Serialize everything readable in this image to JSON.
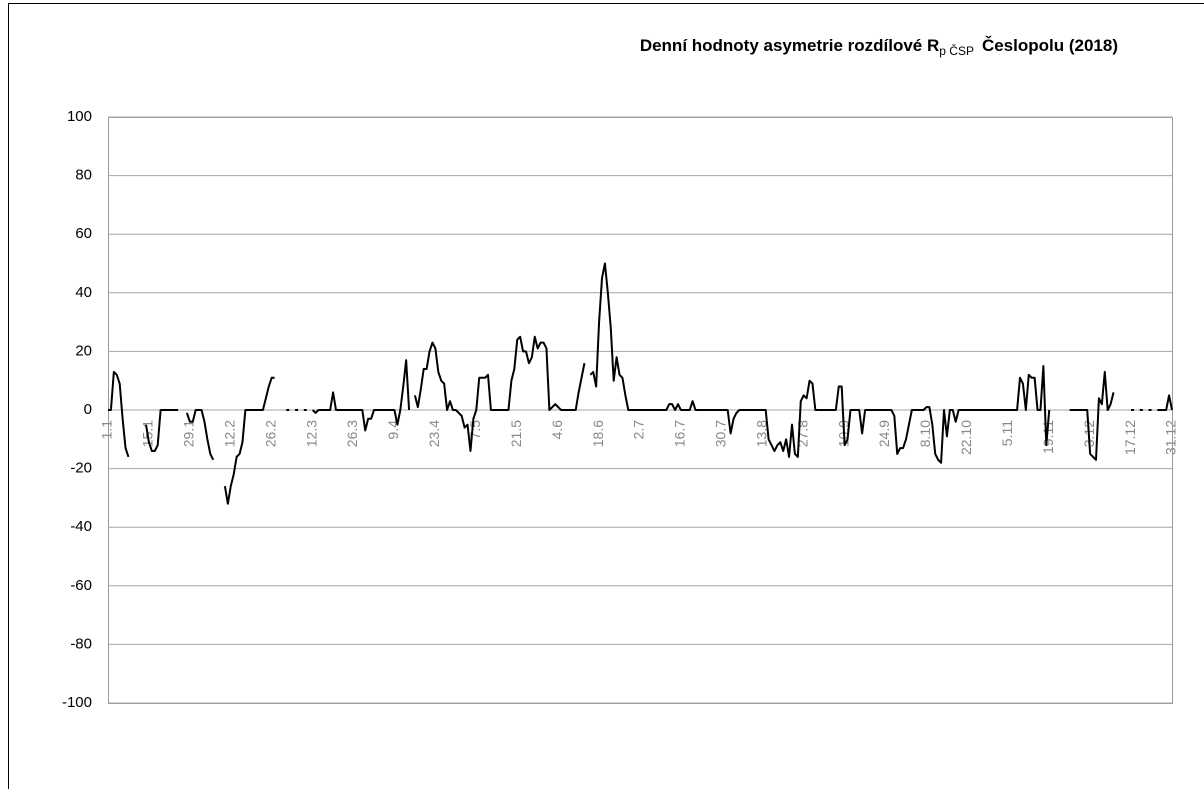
{
  "chart_data": {
    "type": "line",
    "title": "Denní hodnoty asymetrie rozdílové  R",
    "title_subscript": "p ČSP",
    "title_end": "Česlopolu (2018)",
    "color": "#000000",
    "grid": true,
    "ylim": [
      -100,
      100
    ],
    "yticks": [
      -100,
      -80,
      -60,
      -40,
      -20,
      0,
      20,
      40,
      60,
      80,
      100
    ],
    "categories": [
      "1.1",
      null,
      null,
      null,
      null,
      null,
      null,
      null,
      null,
      null,
      null,
      null,
      null,
      null,
      "15.1",
      null,
      null,
      null,
      null,
      null,
      null,
      null,
      null,
      null,
      null,
      null,
      null,
      null,
      "29.1",
      null,
      null,
      null,
      null,
      null,
      null,
      null,
      null,
      null,
      null,
      null,
      null,
      null,
      "12.2",
      null,
      null,
      null,
      null,
      null,
      null,
      null,
      null,
      null,
      null,
      null,
      null,
      null,
      "26.2",
      null,
      null,
      null,
      null,
      null,
      null,
      null,
      null,
      null,
      null,
      null,
      null,
      null,
      "12.3",
      null,
      null,
      null,
      null,
      null,
      null,
      null,
      null,
      null,
      null,
      null,
      null,
      null,
      "26.3",
      null,
      null,
      null,
      null,
      null,
      null,
      null,
      null,
      null,
      null,
      null,
      null,
      null,
      "9.4",
      null,
      null,
      null,
      null,
      null,
      null,
      null,
      null,
      null,
      null,
      null,
      null,
      null,
      "23.4",
      null,
      null,
      null,
      null,
      null,
      null,
      null,
      null,
      null,
      null,
      null,
      null,
      null,
      "7.5",
      null,
      null,
      null,
      null,
      null,
      null,
      null,
      null,
      null,
      null,
      null,
      null,
      null,
      "21.5",
      null,
      null,
      null,
      null,
      null,
      null,
      null,
      null,
      null,
      null,
      null,
      null,
      null,
      "4.6",
      null,
      null,
      null,
      null,
      null,
      null,
      null,
      null,
      null,
      null,
      null,
      null,
      null,
      "18.6",
      null,
      null,
      null,
      null,
      null,
      null,
      null,
      null,
      null,
      null,
      null,
      null,
      null,
      "2.7",
      null,
      null,
      null,
      null,
      null,
      null,
      null,
      null,
      null,
      null,
      null,
      null,
      null,
      "16.7",
      null,
      null,
      null,
      null,
      null,
      null,
      null,
      null,
      null,
      null,
      null,
      null,
      null,
      "30.7",
      null,
      null,
      null,
      null,
      null,
      null,
      null,
      null,
      null,
      null,
      null,
      null,
      null,
      "13.8",
      null,
      null,
      null,
      null,
      null,
      null,
      null,
      null,
      null,
      null,
      null,
      null,
      null,
      "27.8",
      null,
      null,
      null,
      null,
      null,
      null,
      null,
      null,
      null,
      null,
      null,
      null,
      null,
      "10.9",
      null,
      null,
      null,
      null,
      null,
      null,
      null,
      null,
      null,
      null,
      null,
      null,
      null,
      "24.9",
      null,
      null,
      null,
      null,
      null,
      null,
      null,
      null,
      null,
      null,
      null,
      null,
      null,
      "8.10",
      null,
      null,
      null,
      null,
      null,
      null,
      null,
      null,
      null,
      null,
      null,
      null,
      null,
      "22.10",
      null,
      null,
      null,
      null,
      null,
      null,
      null,
      null,
      null,
      null,
      null,
      null,
      null,
      "5.11",
      null,
      null,
      null,
      null,
      null,
      null,
      null,
      null,
      null,
      null,
      null,
      null,
      null,
      "19.11",
      null,
      null,
      null,
      null,
      null,
      null,
      null,
      null,
      null,
      null,
      null,
      null,
      null,
      "3.12",
      null,
      null,
      null,
      null,
      null,
      null,
      null,
      null,
      null,
      null,
      null,
      null,
      null,
      "17.12",
      null,
      null,
      null,
      null,
      null,
      null,
      null,
      null,
      null,
      null,
      null,
      null,
      null,
      "31.12"
    ],
    "values": [
      0,
      0,
      13,
      12,
      9,
      -3,
      -13,
      -16,
      null,
      null,
      null,
      null,
      null,
      -5,
      -11,
      -14,
      -14,
      -12,
      0,
      0,
      0,
      0,
      0,
      0,
      0,
      null,
      null,
      -1,
      -4,
      -4,
      0,
      0,
      0,
      -4,
      -10,
      -15,
      -17,
      null,
      null,
      null,
      -26,
      -32,
      -26,
      -22,
      -16,
      -15,
      -11,
      0,
      0,
      0,
      0,
      0,
      0,
      0,
      4,
      8,
      11,
      11,
      null,
      null,
      null,
      0,
      0,
      null,
      0,
      0,
      null,
      0,
      0,
      null,
      0,
      -1,
      0,
      0,
      0,
      0,
      0,
      6,
      0,
      0,
      0,
      0,
      0,
      0,
      0,
      0,
      0,
      0,
      -7,
      -3,
      -3,
      0,
      0,
      0,
      0,
      0,
      0,
      0,
      0,
      -5,
      0,
      8,
      17,
      0,
      null,
      5,
      1,
      7,
      14,
      14,
      20,
      23,
      21,
      13,
      10,
      9,
      0,
      3,
      0,
      0,
      -1,
      -2,
      -6,
      -5,
      -14,
      -3,
      0,
      11,
      11,
      11,
      12,
      0,
      0,
      0,
      0,
      0,
      0,
      0,
      10,
      14,
      24,
      25,
      20,
      20,
      16,
      18,
      25,
      21,
      23,
      23,
      21,
      0,
      1,
      2,
      1,
      0,
      0,
      0,
      0,
      0,
      0,
      6,
      11,
      16,
      null,
      12,
      13,
      8,
      30,
      45,
      50,
      40,
      28,
      10,
      18,
      12,
      11,
      5,
      0,
      0,
      0,
      0,
      0,
      0,
      0,
      0,
      0,
      0,
      0,
      0,
      0,
      0,
      2,
      2,
      0,
      2,
      0,
      0,
      0,
      0,
      3,
      0,
      0,
      0,
      0,
      0,
      0,
      0,
      0,
      0,
      0,
      0,
      0,
      -8,
      -3,
      -1,
      0,
      0,
      0,
      0,
      0,
      0,
      0,
      0,
      0,
      0,
      -10,
      -12,
      -14,
      -12,
      -11,
      -14,
      -10,
      -16,
      -5,
      -15,
      -16,
      3,
      5,
      4,
      10,
      9,
      0,
      0,
      0,
      0,
      0,
      0,
      0,
      0,
      8,
      8,
      -12,
      -10,
      0,
      0,
      0,
      0,
      -8,
      0,
      0,
      0,
      0,
      0,
      0,
      0,
      0,
      0,
      0,
      -2,
      -15,
      -13,
      -13,
      -10,
      -5,
      0,
      0,
      0,
      0,
      0,
      1,
      1,
      -5,
      -15,
      -17,
      -18,
      0,
      -9,
      0,
      0,
      -4,
      0,
      0,
      0,
      0,
      0,
      0,
      0,
      0,
      0,
      0,
      0,
      0,
      0,
      0,
      0,
      0,
      0,
      0,
      0,
      0,
      0,
      11,
      9,
      0,
      12,
      11,
      11,
      0,
      0,
      15,
      -12,
      0,
      null,
      null,
      null,
      null,
      null,
      null,
      0,
      0,
      0,
      0,
      0,
      0,
      0,
      -15,
      -16,
      -17,
      4,
      2,
      13,
      0,
      2,
      6,
      null,
      null,
      null,
      null,
      null,
      0,
      0,
      null,
      0,
      0,
      null,
      0,
      0,
      null,
      0,
      0,
      0,
      0,
      5,
      0
    ]
  }
}
